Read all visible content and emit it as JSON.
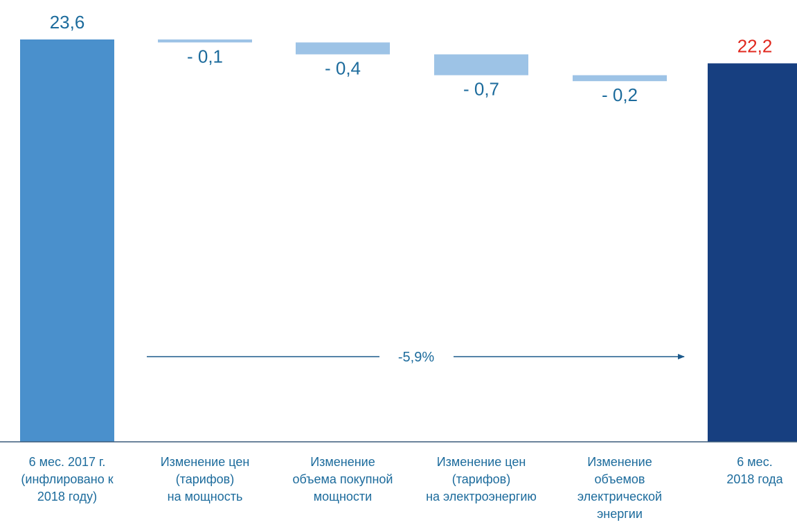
{
  "chart_data": {
    "type": "bar",
    "subtype": "waterfall",
    "categories": [
      "6 мес. 2017 г.\n(инфлировано к\n2018 году)",
      "Изменение цен\n(тарифов)\nна мощность",
      "Изменение\nобъема покупной\nмощности",
      "Изменение цен\n(тарифов)\nна электроэнергию",
      "Изменение\nобъемов\nэлектрической\nэнергии",
      "6 мес.\n2018 года"
    ],
    "values": [
      23.6,
      -0.1,
      -0.4,
      -0.7,
      -0.2,
      22.2
    ],
    "value_labels": [
      "23,6",
      "- 0,1",
      "- 0,4",
      "- 0,7",
      "- 0,2",
      "22,2"
    ],
    "bar_roles": [
      "total",
      "delta",
      "delta",
      "delta",
      "delta",
      "total"
    ],
    "annotation": {
      "text": "-5,9%"
    },
    "colors": {
      "start_total": "#4a90cc",
      "end_total": "#173f80",
      "delta": "#9dc3e6",
      "label": "#1c6b9c",
      "end_label": "#e0281e",
      "axis": "#3a5a7a",
      "arrow": "#1c5a8c"
    }
  }
}
